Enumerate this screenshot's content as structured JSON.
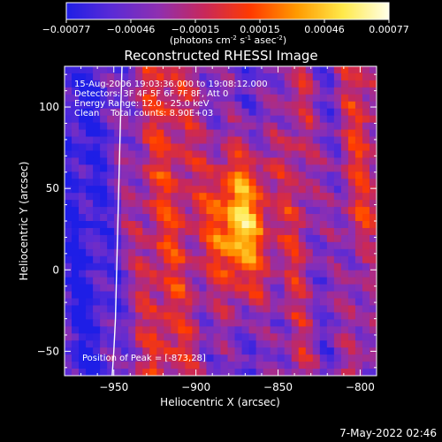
{
  "colorbar": {
    "ticks": [
      "-0.00077",
      "-0.00046",
      "-0.00015",
      "0.00015",
      "0.00046",
      "0.00077"
    ],
    "unit_main": "(photons cm",
    "unit_sup1": "-2",
    "unit_mid": " s",
    "unit_sup2": "-1",
    "unit_end": " asec",
    "unit_sup3": "-2",
    "unit_close": ")",
    "colormap_stops": [
      "#1e1ee6",
      "#5b2bd6",
      "#8f2fb0",
      "#c8285a",
      "#ff3a00",
      "#ff9a00",
      "#ffe94a",
      "#ffffe8"
    ]
  },
  "chart_data": {
    "type": "heatmap",
    "title": "Reconstructed RHESSI Image",
    "xlabel": "Heliocentric X (arcsec)",
    "ylabel": "Heliocentric Y (arcsec)",
    "xlim": [
      -980,
      -790
    ],
    "ylim": [
      -65,
      125
    ],
    "x_ticks": [
      -950,
      -900,
      -850,
      -800
    ],
    "y_ticks": [
      -50,
      0,
      50,
      100
    ],
    "x_tick_labels": [
      "−950",
      "−900",
      "−850",
      "−800"
    ],
    "y_tick_labels": [
      "−50",
      "0",
      "50",
      "100"
    ],
    "peak": [
      -873,
      28
    ],
    "limb_x": [
      -945,
      -946,
      -947,
      -948,
      -949,
      -950,
      -951
    ],
    "limb_y": [
      125,
      90,
      50,
      10,
      -30,
      -50,
      -65
    ],
    "annotations": [
      "15-Aug-2006 19:03:36.000 to 19:08:12.000",
      "Detectors: 3F 4F 5F 6F 7F 8F, Att 0",
      "Energy Range: 12.0 - 25.0 keV",
      "Clean    Total counts: 8.90E+03"
    ],
    "peak_label": "Position of Peak = [-873,28]"
  },
  "footer": {
    "timestamp": "7-May-2022 02:46"
  }
}
